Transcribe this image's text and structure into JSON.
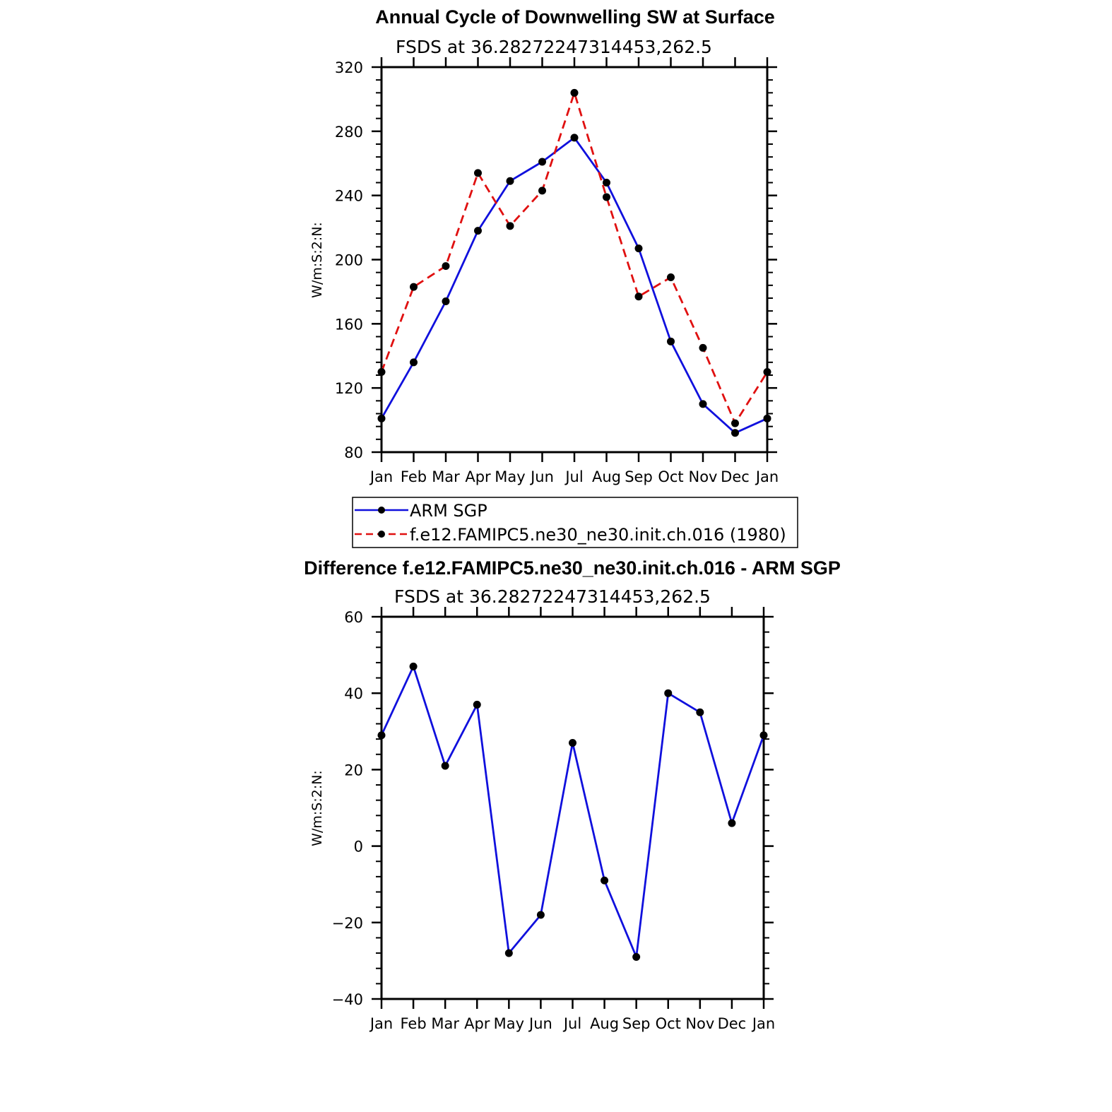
{
  "chart_data": [
    {
      "type": "line",
      "title": "Annual Cycle of Downwelling SW at Surface",
      "subtitle": "FSDS at 36.28272247314453,262.5",
      "ylabel": "W/m:S:2:N:",
      "xlabel": "",
      "categories": [
        "Jan",
        "Feb",
        "Mar",
        "Apr",
        "May",
        "Jun",
        "Jul",
        "Aug",
        "Sep",
        "Oct",
        "Nov",
        "Dec",
        "Jan"
      ],
      "ylim": [
        80,
        320
      ],
      "yticks": [
        80,
        120,
        160,
        200,
        240,
        280,
        320
      ],
      "ytick_labels": [
        "80",
        "120",
        "160",
        "200",
        "240",
        "280",
        "320"
      ],
      "series": [
        {
          "name": "ARM SGP",
          "color": "#1010dd",
          "dash": "solid",
          "values": [
            101,
            136,
            174,
            218,
            249,
            261,
            276,
            248,
            207,
            149,
            110,
            92,
            101
          ]
        },
        {
          "name": "f.e12.FAMIPC5.ne30_ne30.init.ch.016 (1980)",
          "color": "#e01010",
          "dash": "dashed",
          "values": [
            130,
            183,
            196,
            254,
            221,
            243,
            304,
            239,
            177,
            189,
            145,
            98,
            130
          ]
        }
      ],
      "legend": "below"
    },
    {
      "type": "line",
      "title": "Difference f.e12.FAMIPC5.ne30_ne30.init.ch.016 - ARM SGP",
      "subtitle": "FSDS at 36.28272247314453,262.5",
      "ylabel": "W/m:S:2:N:",
      "xlabel": "",
      "categories": [
        "Jan",
        "Feb",
        "Mar",
        "Apr",
        "May",
        "Jun",
        "Jul",
        "Aug",
        "Sep",
        "Oct",
        "Nov",
        "Dec",
        "Jan"
      ],
      "ylim": [
        -40,
        60
      ],
      "yticks": [
        -40,
        -20,
        0,
        20,
        40,
        60
      ],
      "ytick_labels": [
        "−40",
        "−20",
        "0",
        "20",
        "40",
        "60"
      ],
      "series": [
        {
          "name": "Difference",
          "color": "#1010dd",
          "dash": "solid",
          "values": [
            29,
            47,
            21,
            37,
            -28,
            -18,
            27,
            -9,
            -29,
            40,
            35,
            6,
            29
          ]
        }
      ]
    }
  ]
}
